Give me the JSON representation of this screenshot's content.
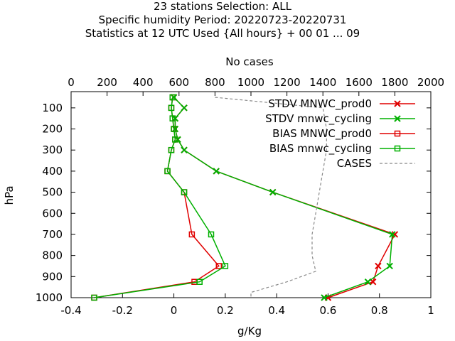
{
  "title_lines": [
    "23 stations Selection: ALL",
    "Specific humidity  Period: 20220723-20220731",
    "Statistics at 12 UTC  Used {All hours} + 00 01 ... 09"
  ],
  "chart_data": {
    "type": "line",
    "xlabel": "g/Kg",
    "ylabel": "hPa",
    "x2label": "No cases",
    "xlim": [
      -0.4,
      1
    ],
    "x2lim": [
      0,
      2000
    ],
    "ylim": [
      1000,
      50
    ],
    "y_reversed": true,
    "xticks": [
      "-0.4",
      "-0.2",
      "0",
      "0.2",
      "0.4",
      "0.6",
      "0.8",
      "1"
    ],
    "x2ticks": [
      "0",
      "200",
      "400",
      "600",
      "800",
      "1000",
      "1200",
      "1400",
      "1600",
      "1800",
      "2000"
    ],
    "yticks": [
      "100",
      "200",
      "300",
      "400",
      "500",
      "600",
      "700",
      "800",
      "900",
      "1000"
    ],
    "legend_position": "top-right",
    "grid": false,
    "series": [
      {
        "name": "STDV MNWC_prod0",
        "color": "#e00000",
        "marker": "x",
        "dash": false,
        "points": [
          [
            0.0,
            50
          ],
          [
            0.04,
            100
          ],
          [
            0.005,
            150
          ],
          [
            0.005,
            200
          ],
          [
            0.015,
            250
          ],
          [
            0.04,
            300
          ],
          [
            0.165,
            400
          ],
          [
            0.385,
            500
          ],
          [
            0.86,
            700
          ],
          [
            0.795,
            850
          ],
          [
            0.775,
            925
          ],
          [
            0.6,
            1000
          ]
        ]
      },
      {
        "name": "STDV mnwc_cycling",
        "color": "#00b000",
        "marker": "x",
        "dash": false,
        "points": [
          [
            0.0,
            50
          ],
          [
            0.04,
            100
          ],
          [
            0.005,
            150
          ],
          [
            0.005,
            200
          ],
          [
            0.015,
            250
          ],
          [
            0.04,
            300
          ],
          [
            0.165,
            400
          ],
          [
            0.385,
            500
          ],
          [
            0.85,
            700
          ],
          [
            0.84,
            850
          ],
          [
            0.755,
            925
          ],
          [
            0.585,
            1000
          ]
        ]
      },
      {
        "name": "BIAS MNWC_prod0",
        "color": "#e00000",
        "marker": "square",
        "dash": false,
        "points": [
          [
            -0.005,
            50
          ],
          [
            -0.01,
            100
          ],
          [
            -0.005,
            150
          ],
          [
            0.0,
            200
          ],
          [
            0.005,
            250
          ],
          [
            -0.01,
            300
          ],
          [
            -0.025,
            400
          ],
          [
            0.04,
            500
          ],
          [
            0.07,
            700
          ],
          [
            0.175,
            850
          ],
          [
            0.08,
            925
          ],
          [
            -0.31,
            1000
          ]
        ]
      },
      {
        "name": "BIAS mnwc_cycling",
        "color": "#00b000",
        "marker": "square",
        "dash": false,
        "points": [
          [
            -0.005,
            50
          ],
          [
            -0.01,
            100
          ],
          [
            -0.005,
            150
          ],
          [
            0.0,
            200
          ],
          [
            0.005,
            250
          ],
          [
            -0.01,
            300
          ],
          [
            -0.025,
            400
          ],
          [
            0.04,
            500
          ],
          [
            0.145,
            700
          ],
          [
            0.2,
            850
          ],
          [
            0.1,
            925
          ],
          [
            -0.31,
            1000
          ]
        ]
      },
      {
        "name": "CASES",
        "color": "#888888",
        "marker": "none",
        "dash": true,
        "axis": "x2",
        "points": [
          [
            800,
            50
          ],
          [
            1400,
            100
          ],
          [
            1420,
            200
          ],
          [
            1420,
            300
          ],
          [
            1400,
            400
          ],
          [
            1380,
            500
          ],
          [
            1360,
            600
          ],
          [
            1340,
            700
          ],
          [
            1340,
            800
          ],
          [
            1360,
            875
          ],
          [
            1200,
            925
          ],
          [
            1000,
            975
          ],
          [
            1000,
            1000
          ]
        ]
      }
    ]
  }
}
